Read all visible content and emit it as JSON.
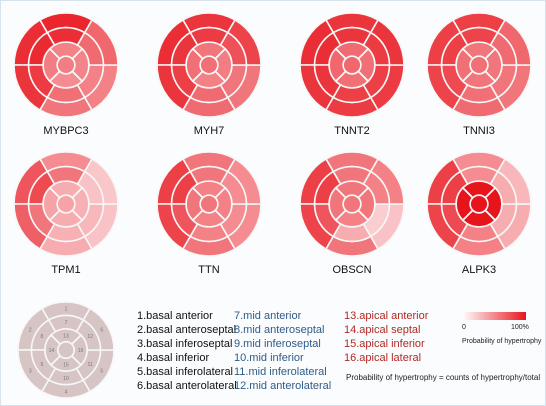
{
  "genes": [
    {
      "name": "MYBPC3",
      "values": [
        0.92,
        0.88,
        0.85,
        0.55,
        0.5,
        0.62,
        0.88,
        0.9,
        0.82,
        0.58,
        0.5,
        0.6,
        0.5,
        0.52,
        0.45,
        0.48
      ]
    },
    {
      "name": "MYH7",
      "values": [
        0.85,
        0.88,
        0.85,
        0.6,
        0.55,
        0.78,
        0.82,
        0.85,
        0.8,
        0.6,
        0.55,
        0.72,
        0.55,
        0.58,
        0.5,
        0.52
      ]
    },
    {
      "name": "TNNT2",
      "values": [
        0.85,
        0.88,
        0.85,
        0.82,
        0.82,
        0.85,
        0.85,
        0.88,
        0.85,
        0.8,
        0.8,
        0.82,
        0.6,
        0.62,
        0.58,
        0.58
      ]
    },
    {
      "name": "TNNI3",
      "values": [
        0.8,
        0.8,
        0.78,
        0.6,
        0.55,
        0.62,
        0.78,
        0.8,
        0.75,
        0.58,
        0.55,
        0.6,
        0.55,
        0.58,
        0.55,
        0.55
      ]
    },
    {
      "name": "TPM1",
      "values": [
        0.45,
        0.7,
        0.65,
        0.3,
        0.2,
        0.18,
        0.55,
        0.75,
        0.55,
        0.28,
        0.25,
        0.2,
        0.3,
        0.35,
        0.3,
        0.28
      ]
    },
    {
      "name": "TTN",
      "values": [
        0.55,
        0.8,
        0.78,
        0.55,
        0.45,
        0.45,
        0.55,
        0.8,
        0.7,
        0.5,
        0.45,
        0.45,
        0.5,
        0.55,
        0.5,
        0.5
      ]
    },
    {
      "name": "OBSCN",
      "values": [
        0.55,
        0.8,
        0.78,
        0.55,
        0.2,
        0.5,
        0.55,
        0.8,
        0.7,
        0.3,
        0.15,
        0.5,
        0.55,
        0.55,
        0.5,
        0.55
      ]
    },
    {
      "name": "ALPK3",
      "values": [
        0.45,
        0.8,
        0.78,
        0.5,
        0.3,
        0.25,
        0.45,
        0.8,
        0.75,
        0.5,
        0.3,
        0.3,
        1.0,
        1.0,
        1.0,
        1.0
      ]
    }
  ],
  "key_numbers": [
    "1",
    "2",
    "3",
    "4",
    "5",
    "6",
    "7",
    "8",
    "9",
    "10",
    "11",
    "12",
    "13",
    "14",
    "15",
    "16"
  ],
  "segments": {
    "basal": [
      "1.basal anterior",
      "2.basal anteroseptal",
      "3.basal inferoseptal",
      "4.basal inferior",
      "5.basal inferolateral",
      "6.basal anterolateral"
    ],
    "mid": [
      "7.mid anterior",
      "8.mid anteroseptal",
      "9.mid inferoseptal",
      "10.mid inferior",
      "11.mid inferolateral",
      "12.mid anterolateral"
    ],
    "apical": [
      "13.apical anterior",
      "14.apical septal",
      "15.apical inferior",
      "16.apical lateral"
    ]
  },
  "legend": {
    "min": "0",
    "max": "100%",
    "title": "Probability of hypertrophy",
    "formula": "Probability of hypertrophy = counts of hypertrophy/total"
  },
  "colors": {
    "high": "#e8141c",
    "low": "#fdeef0",
    "divider": "#f6f6f6",
    "key_fill": "#d7c4c4",
    "mid_text": "#2f5b8a",
    "apical_text": "#b02a26",
    "basal_text": "#111111"
  }
}
